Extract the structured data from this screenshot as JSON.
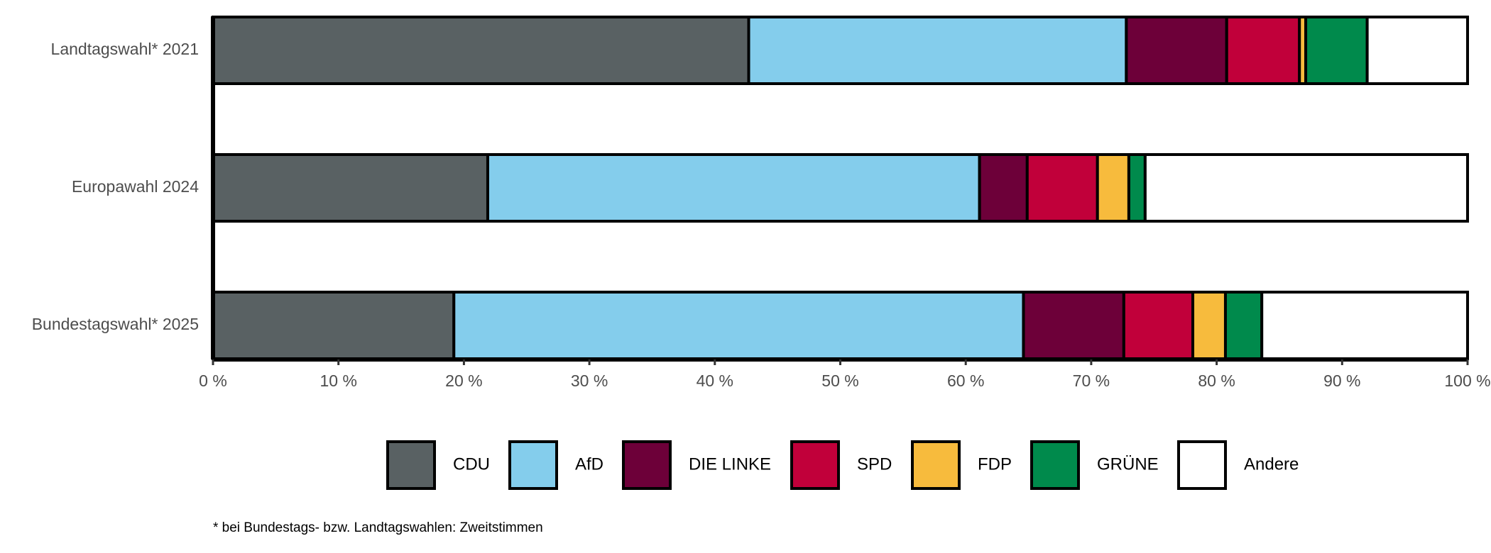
{
  "chart_data": {
    "type": "bar",
    "orientation": "horizontal",
    "stacked": true,
    "categories": [
      "Landtagswahl* 2021",
      "Europawahl 2024",
      "Bundestagswahl* 2025"
    ],
    "series": [
      {
        "name": "CDU",
        "color": "#596163",
        "values": [
          42.7,
          21.9,
          19.2
        ]
      },
      {
        "name": "AfD",
        "color": "#84cdec",
        "values": [
          30.1,
          39.2,
          45.4
        ]
      },
      {
        "name": "DIE LINKE",
        "color": "#6d0039",
        "values": [
          8.0,
          3.8,
          8.0
        ]
      },
      {
        "name": "SPD",
        "color": "#c1003a",
        "values": [
          5.8,
          5.6,
          5.5
        ]
      },
      {
        "name": "FDP",
        "color": "#f7bb3d",
        "values": [
          0.5,
          2.5,
          2.6
        ]
      },
      {
        "name": "GRÜNE",
        "color": "#008a4c",
        "values": [
          4.9,
          1.3,
          2.9
        ]
      },
      {
        "name": "Andere",
        "color": "#ffffff",
        "values": [
          8.0,
          25.7,
          16.4
        ]
      }
    ],
    "xlim": [
      0,
      100
    ],
    "xticks": [
      {
        "value": 0,
        "label": "0 %"
      },
      {
        "value": 10,
        "label": "10 %"
      },
      {
        "value": 20,
        "label": "20 %"
      },
      {
        "value": 30,
        "label": "30 %"
      },
      {
        "value": 40,
        "label": "40 %"
      },
      {
        "value": 50,
        "label": "50 %"
      },
      {
        "value": 60,
        "label": "60 %"
      },
      {
        "value": 70,
        "label": "70 %"
      },
      {
        "value": 80,
        "label": "80 %"
      },
      {
        "value": 90,
        "label": "90 %"
      },
      {
        "value": 100,
        "label": "100 %"
      }
    ],
    "legend": "bottom",
    "footnote": "* bei Bundestags- bzw. Landtagswahlen: Zweitstimmen"
  }
}
